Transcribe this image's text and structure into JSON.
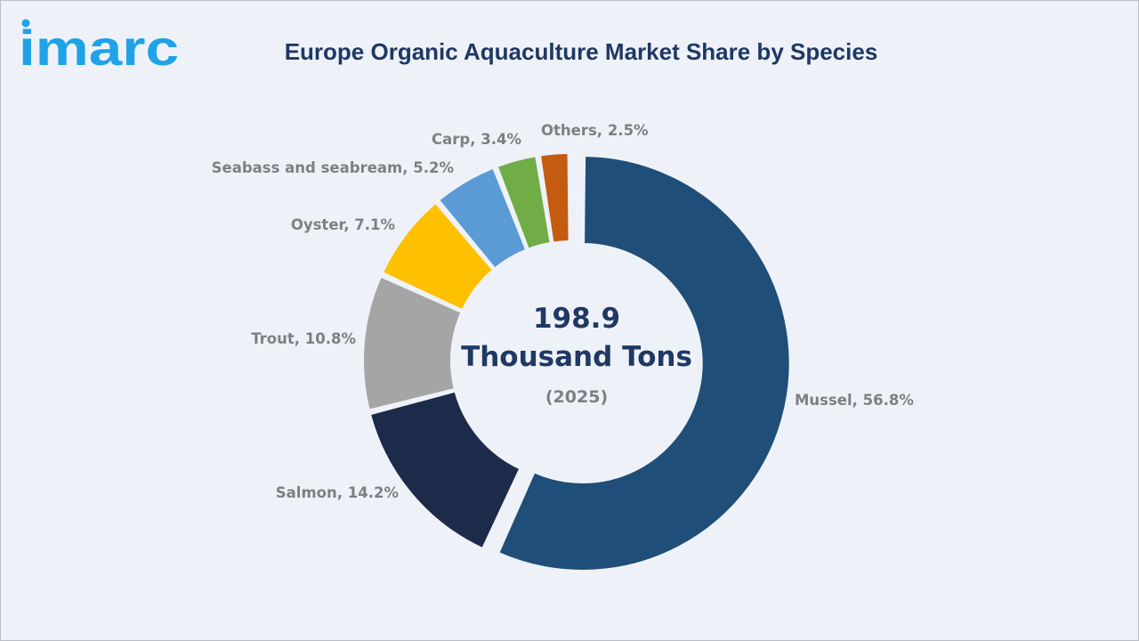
{
  "brand": {
    "logo_text": "imarc",
    "color": "#1fa2e8"
  },
  "title": "Europe Organic Aquaculture Market Share by Species",
  "center": {
    "value": "198.9",
    "unit": "Thousand Tons",
    "year": "(2025)"
  },
  "chart_data": {
    "type": "pie",
    "style": "donut",
    "title": "Europe Organic Aquaculture Market Share by Species",
    "unit": "%",
    "categories": [
      "Mussel",
      "Salmon",
      "Trout",
      "Oyster",
      "Seabass and seabream",
      "Carp",
      "Others"
    ],
    "values": [
      56.8,
      14.2,
      10.8,
      7.1,
      5.2,
      3.4,
      2.5
    ],
    "labels": [
      "Mussel, 56.8%",
      "Salmon, 14.2%",
      "Trout, 10.8%",
      "Oyster, 7.1%",
      "Seabass and seabream, 5.2%",
      "Carp, 3.4%",
      "Others, 2.5%"
    ],
    "colors": [
      "#1f4e79",
      "#1c2b4a",
      "#a5a5a5",
      "#ffc000",
      "#5b9bd5",
      "#70ad47",
      "#c55a11"
    ],
    "exploded": "Mussel",
    "legend": "none"
  }
}
